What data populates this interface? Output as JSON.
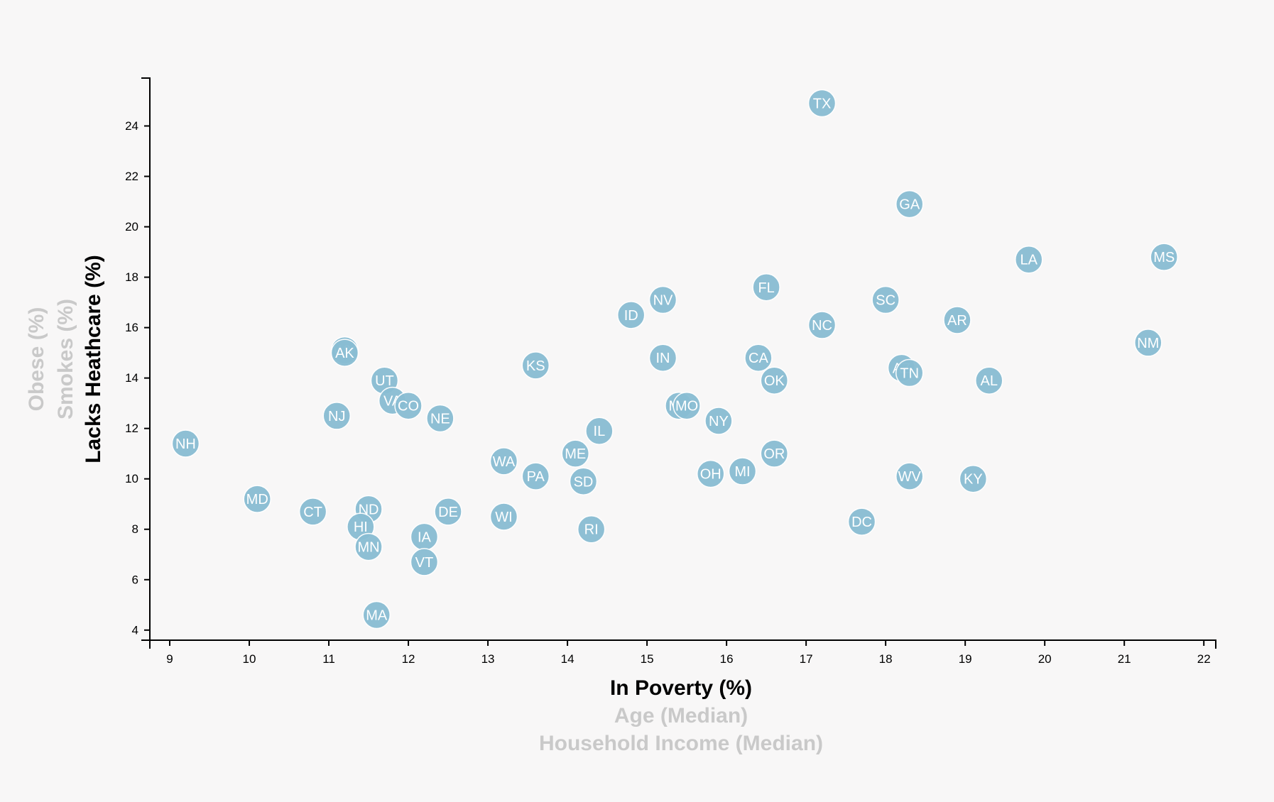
{
  "chart_data": {
    "type": "scatter",
    "x_axis": {
      "active_label": "In Poverty (%)",
      "inactive_labels": [
        "Age (Median)",
        "Household Income (Median)"
      ],
      "range": [
        8.75,
        22.15
      ],
      "ticks": [
        9,
        10,
        11,
        12,
        13,
        14,
        15,
        16,
        17,
        18,
        19,
        20,
        21,
        22
      ]
    },
    "y_axis": {
      "active_label": "Lacks Heathcare (%)",
      "inactive_labels": [
        "Smokes (%)",
        "Obese (%)"
      ],
      "range": [
        3.6,
        25.9
      ],
      "ticks": [
        4,
        6,
        8,
        10,
        12,
        14,
        16,
        18,
        20,
        22,
        24
      ]
    },
    "marker_color": "#89bdd3",
    "points": [
      {
        "abbr": "TX",
        "x": 17.2,
        "y": 24.9
      },
      {
        "abbr": "GA",
        "x": 18.3,
        "y": 20.9
      },
      {
        "abbr": "LA",
        "x": 19.8,
        "y": 18.7
      },
      {
        "abbr": "MS",
        "x": 21.5,
        "y": 18.8
      },
      {
        "abbr": "FL",
        "x": 16.5,
        "y": 17.6
      },
      {
        "abbr": "NV",
        "x": 15.2,
        "y": 17.1
      },
      {
        "abbr": "SC",
        "x": 18.0,
        "y": 17.1
      },
      {
        "abbr": "ID",
        "x": 14.8,
        "y": 16.5
      },
      {
        "abbr": "AR",
        "x": 18.9,
        "y": 16.3
      },
      {
        "abbr": "NC",
        "x": 17.2,
        "y": 16.1
      },
      {
        "abbr": "NM",
        "x": 21.3,
        "y": 15.4
      },
      {
        "abbr": "WY",
        "x": 11.2,
        "y": 15.1
      },
      {
        "abbr": "AK",
        "x": 11.2,
        "y": 15.0
      },
      {
        "abbr": "IN",
        "x": 15.2,
        "y": 14.8
      },
      {
        "abbr": "CA",
        "x": 16.4,
        "y": 14.8
      },
      {
        "abbr": "KS",
        "x": 13.6,
        "y": 14.5
      },
      {
        "abbr": "AZ",
        "x": 18.2,
        "y": 14.4
      },
      {
        "abbr": "TN",
        "x": 18.3,
        "y": 14.2
      },
      {
        "abbr": "UT",
        "x": 11.7,
        "y": 13.9
      },
      {
        "abbr": "OK",
        "x": 16.6,
        "y": 13.9
      },
      {
        "abbr": "AL",
        "x": 19.3,
        "y": 13.9
      },
      {
        "abbr": "VA",
        "x": 11.8,
        "y": 13.1
      },
      {
        "abbr": "CO",
        "x": 12.0,
        "y": 12.9
      },
      {
        "abbr": "MT",
        "x": 15.4,
        "y": 12.9
      },
      {
        "abbr": "MO",
        "x": 15.5,
        "y": 12.9
      },
      {
        "abbr": "NJ",
        "x": 11.1,
        "y": 12.5
      },
      {
        "abbr": "NE",
        "x": 12.4,
        "y": 12.4
      },
      {
        "abbr": "NY",
        "x": 15.9,
        "y": 12.3
      },
      {
        "abbr": "IL",
        "x": 14.4,
        "y": 11.9
      },
      {
        "abbr": "NH",
        "x": 9.2,
        "y": 11.4
      },
      {
        "abbr": "ME",
        "x": 14.1,
        "y": 11.0
      },
      {
        "abbr": "OR",
        "x": 16.6,
        "y": 11.0
      },
      {
        "abbr": "WA",
        "x": 13.2,
        "y": 10.7
      },
      {
        "abbr": "MI",
        "x": 16.2,
        "y": 10.3
      },
      {
        "abbr": "OH",
        "x": 15.8,
        "y": 10.2
      },
      {
        "abbr": "PA",
        "x": 13.6,
        "y": 10.1
      },
      {
        "abbr": "WV",
        "x": 18.3,
        "y": 10.1
      },
      {
        "abbr": "KY",
        "x": 19.1,
        "y": 10.0
      },
      {
        "abbr": "SD",
        "x": 14.2,
        "y": 9.9
      },
      {
        "abbr": "MD",
        "x": 10.1,
        "y": 9.2
      },
      {
        "abbr": "ND",
        "x": 11.5,
        "y": 8.8
      },
      {
        "abbr": "CT",
        "x": 10.8,
        "y": 8.7
      },
      {
        "abbr": "DE",
        "x": 12.5,
        "y": 8.7
      },
      {
        "abbr": "WI",
        "x": 13.2,
        "y": 8.5
      },
      {
        "abbr": "DC",
        "x": 17.7,
        "y": 8.3
      },
      {
        "abbr": "HI",
        "x": 11.4,
        "y": 8.1
      },
      {
        "abbr": "RI",
        "x": 14.3,
        "y": 8.0
      },
      {
        "abbr": "IA",
        "x": 12.2,
        "y": 7.7
      },
      {
        "abbr": "MN",
        "x": 11.5,
        "y": 7.3
      },
      {
        "abbr": "VT",
        "x": 12.2,
        "y": 6.7
      },
      {
        "abbr": "MA",
        "x": 11.6,
        "y": 4.6
      }
    ]
  }
}
